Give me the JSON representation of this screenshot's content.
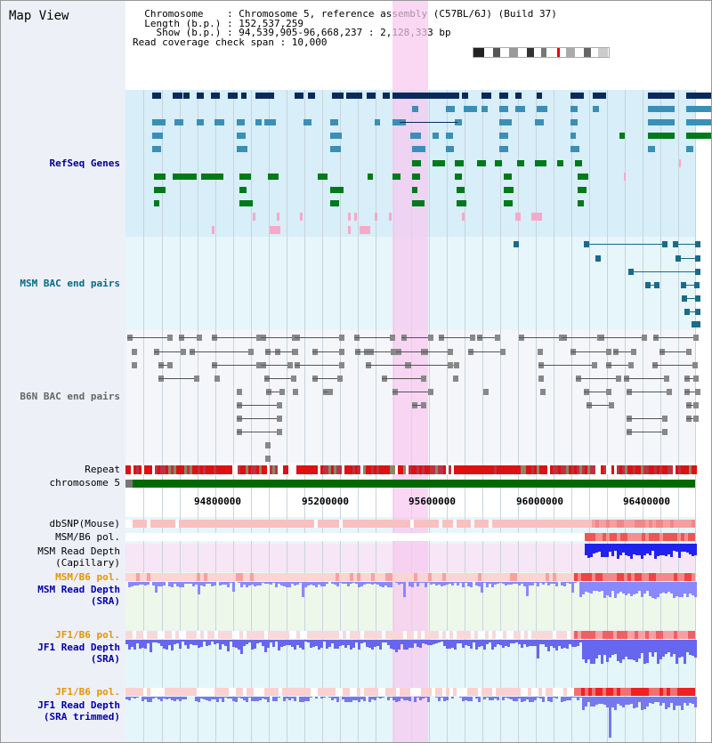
{
  "header": {
    "title": "Map View",
    "info_lines": [
      "  Chromosome    : Chromosome 5, reference assembly (C57BL/6J) (Build 37)",
      "  Length (b.p.) : 152,537,259",
      "    Show (b.p.) : 94,539,905-96,668,237 : 2,128,333 bp",
      "Read coverage check span : 10,000"
    ]
  },
  "tracks": {
    "refseq": "RefSeq Genes",
    "msm_bac": "MSM BAC end pairs",
    "b6n_bac": "B6N BAC end pairs",
    "repeat": "Repeat",
    "chromosome": "chromosome 5",
    "dbsnp": "dbSNP(Mouse)",
    "msm_b6_pol_1": "MSM/B6 pol.",
    "msm_depth_cap_1": "MSM Read Depth",
    "msm_depth_cap_2": "(Capillary)",
    "msm_b6_pol_2": "MSM/B6 pol.",
    "msm_depth_sra_1": "MSM Read Depth",
    "msm_depth_sra_2": "(SRA)",
    "jf1_b6_pol_1": "JF1/B6 pol.",
    "jf1_depth_sra_1": "JF1 Read Depth",
    "jf1_depth_sra_2": "(SRA)",
    "jf1_b6_pol_2": "JF1/B6 pol.",
    "jf1_depth_trim_1": "JF1 Read Depth",
    "jf1_depth_trim_2": "(SRA trimmed)"
  },
  "axis": {
    "ticks": [
      "94800000",
      "95200000",
      "95600000",
      "96000000",
      "96400000"
    ]
  },
  "colors": {
    "refseq_label": "#00008b",
    "msm_label": "#006b8a",
    "pol_label": "#e69500",
    "depth_label": "#0000aa",
    "gene_dark": "#0a2a5a",
    "gene_mid": "#3a8fb7",
    "gene_green": "#007a1a",
    "highlight": "#f8c8f0"
  }
}
